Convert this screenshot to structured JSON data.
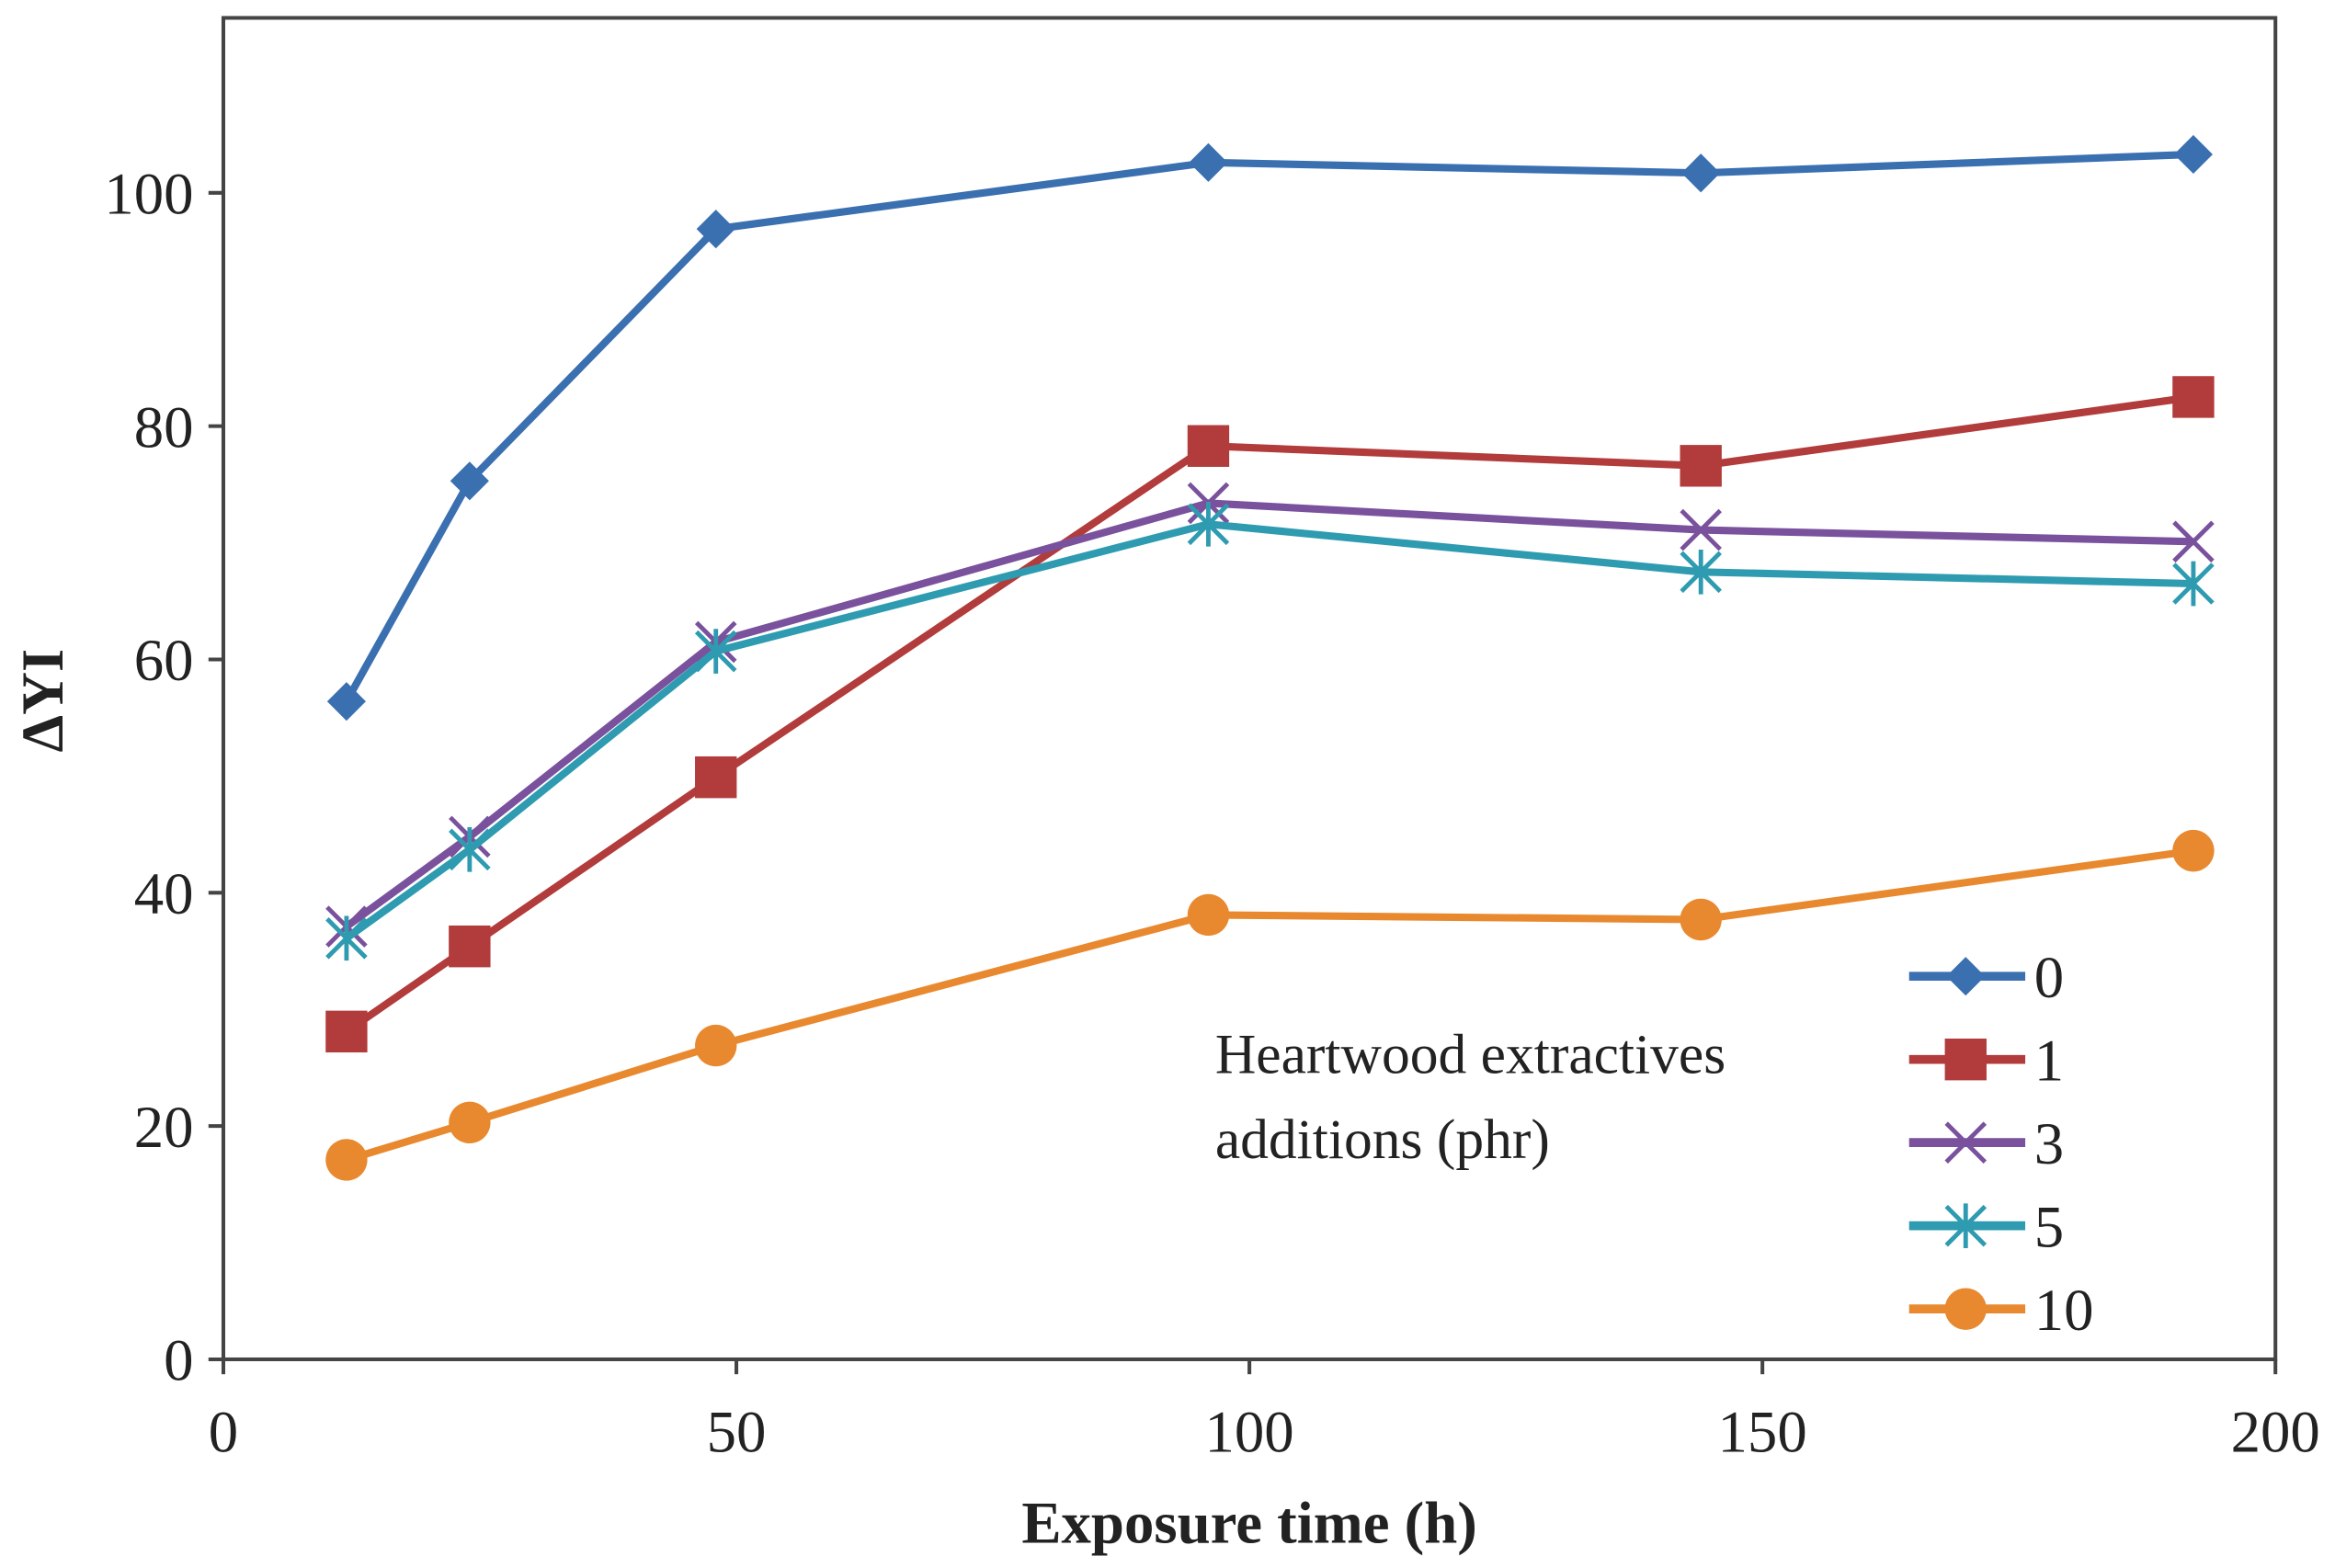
{
  "chart_data": {
    "type": "line",
    "title": "",
    "xlabel": "Exposure time (h)",
    "ylabel": "ΔYI",
    "xlim": [
      0,
      200
    ],
    "ylim": [
      0,
      115
    ],
    "xticks": [
      0,
      50,
      100,
      150,
      200
    ],
    "yticks": [
      0,
      20,
      40,
      60,
      80,
      100
    ],
    "grid": false,
    "legend_title": [
      "Heartwood extractives",
      "additions (phr)"
    ],
    "legend_placement": "bottom-right",
    "x": [
      12,
      24,
      48,
      96,
      144,
      192
    ],
    "series": [
      {
        "name": "0",
        "color": "#3a6fb0",
        "marker": "diamond",
        "values": [
          56.4,
          75.3,
          96.9,
          102.6,
          101.7,
          103.3
        ]
      },
      {
        "name": "1",
        "color": "#b23b3b",
        "marker": "square",
        "values": [
          28.1,
          35.4,
          49.9,
          78.3,
          76.6,
          82.5
        ]
      },
      {
        "name": "3",
        "color": "#7a519c",
        "marker": "x",
        "values": [
          37.1,
          44.8,
          61.5,
          73.4,
          71.1,
          70.1
        ]
      },
      {
        "name": "5",
        "color": "#2e9bb0",
        "marker": "star",
        "values": [
          36.1,
          43.7,
          60.7,
          71.6,
          67.5,
          66.5
        ]
      },
      {
        "name": "10",
        "color": "#e8892f",
        "marker": "circle",
        "values": [
          17.1,
          20.3,
          26.9,
          38.1,
          37.7,
          43.6
        ]
      }
    ]
  }
}
